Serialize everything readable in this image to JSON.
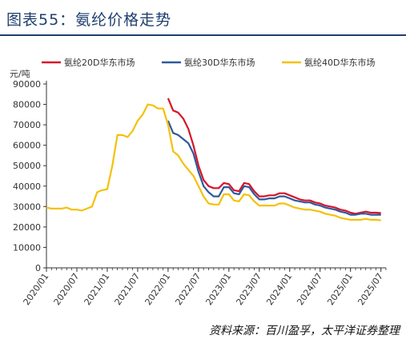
{
  "header": {
    "title": "图表55：氨纶价格走势"
  },
  "footer": {
    "source": "资料来源：百川盈孚，太平洋证券整理"
  },
  "chart_data": {
    "type": "line",
    "title": "图表55：氨纶价格走势",
    "ylabel": "元/吨",
    "xlabel": "",
    "ylim": [
      0,
      90000
    ],
    "yticks": [
      0,
      10000,
      20000,
      30000,
      40000,
      50000,
      60000,
      70000,
      80000,
      90000
    ],
    "xticks": [
      "2020/01",
      "2020/07",
      "2021/01",
      "2021/07",
      "2022/01",
      "2022/07",
      "2023/01",
      "2023/07",
      "2024/01",
      "2024/07",
      "2025/01",
      "2025/07"
    ],
    "xlim": [
      "2020/01",
      "2025/08"
    ],
    "grid": false,
    "legend_position": "top",
    "series": [
      {
        "name": "氨纶20D华东市场",
        "color": "#d7142a",
        "points": [
          [
            "2022/01",
            83000
          ],
          [
            "2022/02",
            77000
          ],
          [
            "2022/03",
            76000
          ],
          [
            "2022/04",
            73000
          ],
          [
            "2022/05",
            68000
          ],
          [
            "2022/06",
            60000
          ],
          [
            "2022/07",
            50000
          ],
          [
            "2022/08",
            43000
          ],
          [
            "2022/09",
            40000
          ],
          [
            "2022/10",
            39000
          ],
          [
            "2022/11",
            39000
          ],
          [
            "2022/12",
            41500
          ],
          [
            "2023/01",
            41000
          ],
          [
            "2023/02",
            38000
          ],
          [
            "2023/03",
            37500
          ],
          [
            "2023/04",
            41500
          ],
          [
            "2023/05",
            41000
          ],
          [
            "2023/06",
            37500
          ],
          [
            "2023/07",
            35000
          ],
          [
            "2023/08",
            35000
          ],
          [
            "2023/09",
            35500
          ],
          [
            "2023/10",
            35500
          ],
          [
            "2023/11",
            36500
          ],
          [
            "2023/12",
            36500
          ],
          [
            "2024/01",
            35500
          ],
          [
            "2024/02",
            34500
          ],
          [
            "2024/03",
            33500
          ],
          [
            "2024/04",
            33000
          ],
          [
            "2024/05",
            33000
          ],
          [
            "2024/06",
            32000
          ],
          [
            "2024/07",
            31500
          ],
          [
            "2024/08",
            30500
          ],
          [
            "2024/09",
            30000
          ],
          [
            "2024/10",
            29500
          ],
          [
            "2024/11",
            28500
          ],
          [
            "2024/12",
            28000
          ],
          [
            "2025/01",
            27000
          ],
          [
            "2025/02",
            26500
          ],
          [
            "2025/03",
            27000
          ],
          [
            "2025/04",
            27500
          ],
          [
            "2025/05",
            27000
          ],
          [
            "2025/06",
            27000
          ],
          [
            "2025/07",
            26800
          ]
        ]
      },
      {
        "name": "氨纶30D华东市场",
        "color": "#2e5a9c",
        "points": [
          [
            "2022/01",
            72000
          ],
          [
            "2022/02",
            66000
          ],
          [
            "2022/03",
            65000
          ],
          [
            "2022/04",
            63000
          ],
          [
            "2022/05",
            61000
          ],
          [
            "2022/06",
            56000
          ],
          [
            "2022/07",
            47000
          ],
          [
            "2022/08",
            40000
          ],
          [
            "2022/09",
            37000
          ],
          [
            "2022/10",
            35000
          ],
          [
            "2022/11",
            35000
          ],
          [
            "2022/12",
            39500
          ],
          [
            "2023/01",
            39500
          ],
          [
            "2023/02",
            36500
          ],
          [
            "2023/03",
            36000
          ],
          [
            "2023/04",
            40000
          ],
          [
            "2023/05",
            39500
          ],
          [
            "2023/06",
            36000
          ],
          [
            "2023/07",
            33500
          ],
          [
            "2023/08",
            33500
          ],
          [
            "2023/09",
            34000
          ],
          [
            "2023/10",
            34000
          ],
          [
            "2023/11",
            35000
          ],
          [
            "2023/12",
            35000
          ],
          [
            "2024/01",
            34000
          ],
          [
            "2024/02",
            33000
          ],
          [
            "2024/03",
            32500
          ],
          [
            "2024/04",
            32000
          ],
          [
            "2024/05",
            32000
          ],
          [
            "2024/06",
            31000
          ],
          [
            "2024/07",
            30500
          ],
          [
            "2024/08",
            29500
          ],
          [
            "2024/09",
            29000
          ],
          [
            "2024/10",
            28500
          ],
          [
            "2024/11",
            27500
          ],
          [
            "2024/12",
            27000
          ],
          [
            "2025/01",
            26000
          ],
          [
            "2025/02",
            26000
          ],
          [
            "2025/03",
            26500
          ],
          [
            "2025/04",
            26500
          ],
          [
            "2025/05",
            26000
          ],
          [
            "2025/06",
            26000
          ],
          [
            "2025/07",
            26000
          ]
        ]
      },
      {
        "name": "氨纶40D华东市场",
        "color": "#f5c00a",
        "points": [
          [
            "2020/01",
            29500
          ],
          [
            "2020/02",
            29000
          ],
          [
            "2020/03",
            29000
          ],
          [
            "2020/04",
            29000
          ],
          [
            "2020/05",
            29500
          ],
          [
            "2020/06",
            28500
          ],
          [
            "2020/07",
            28500
          ],
          [
            "2020/08",
            28000
          ],
          [
            "2020/09",
            29000
          ],
          [
            "2020/10",
            30000
          ],
          [
            "2020/11",
            37000
          ],
          [
            "2020/12",
            38000
          ],
          [
            "2021/01",
            38500
          ],
          [
            "2021/02",
            50000
          ],
          [
            "2021/03",
            65000
          ],
          [
            "2021/04",
            65000
          ],
          [
            "2021/05",
            64000
          ],
          [
            "2021/06",
            67000
          ],
          [
            "2021/07",
            72000
          ],
          [
            "2021/08",
            75000
          ],
          [
            "2021/09",
            80000
          ],
          [
            "2021/10",
            79500
          ],
          [
            "2021/11",
            78000
          ],
          [
            "2021/12",
            78000
          ],
          [
            "2022/01",
            70000
          ],
          [
            "2022/02",
            57000
          ],
          [
            "2022/03",
            55000
          ],
          [
            "2022/04",
            51000
          ],
          [
            "2022/05",
            48000
          ],
          [
            "2022/06",
            45000
          ],
          [
            "2022/07",
            40000
          ],
          [
            "2022/08",
            35000
          ],
          [
            "2022/09",
            31500
          ],
          [
            "2022/10",
            31000
          ],
          [
            "2022/11",
            31000
          ],
          [
            "2022/12",
            36000
          ],
          [
            "2023/01",
            36000
          ],
          [
            "2023/02",
            33000
          ],
          [
            "2023/03",
            32500
          ],
          [
            "2023/04",
            36000
          ],
          [
            "2023/05",
            35500
          ],
          [
            "2023/06",
            32500
          ],
          [
            "2023/07",
            30500
          ],
          [
            "2023/08",
            30500
          ],
          [
            "2023/09",
            30500
          ],
          [
            "2023/10",
            30500
          ],
          [
            "2023/11",
            31500
          ],
          [
            "2023/12",
            31500
          ],
          [
            "2024/01",
            30500
          ],
          [
            "2024/02",
            29500
          ],
          [
            "2024/03",
            29000
          ],
          [
            "2024/04",
            28500
          ],
          [
            "2024/05",
            28500
          ],
          [
            "2024/06",
            28000
          ],
          [
            "2024/07",
            27500
          ],
          [
            "2024/08",
            26500
          ],
          [
            "2024/09",
            26000
          ],
          [
            "2024/10",
            25500
          ],
          [
            "2024/11",
            24500
          ],
          [
            "2024/12",
            24000
          ],
          [
            "2025/01",
            23500
          ],
          [
            "2025/02",
            23500
          ],
          [
            "2025/03",
            23500
          ],
          [
            "2025/04",
            24000
          ],
          [
            "2025/05",
            23500
          ],
          [
            "2025/06",
            23500
          ],
          [
            "2025/07",
            23300
          ]
        ]
      }
    ]
  }
}
